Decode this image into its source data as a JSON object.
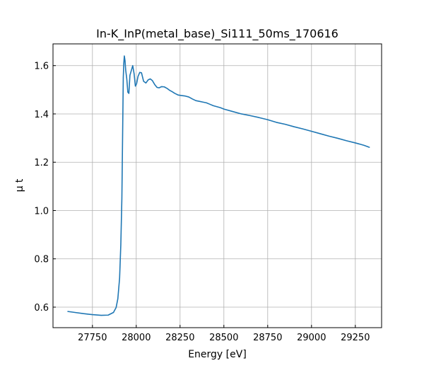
{
  "chart_data": {
    "type": "line",
    "title": "In-K_InP(metal_base)_Si111_50ms_170616",
    "xlabel": "Energy [eV]",
    "ylabel": "μ t",
    "xlim": [
      27525,
      29400
    ],
    "ylim": [
      0.515,
      1.69
    ],
    "xticks": [
      27750,
      28000,
      28250,
      28500,
      28750,
      29000,
      29250
    ],
    "yticks": [
      0.6,
      0.8,
      1.0,
      1.2,
      1.4,
      1.6
    ],
    "xtick_labels": [
      "27750",
      "28000",
      "28250",
      "28500",
      "28750",
      "29000",
      "29250"
    ],
    "ytick_labels": [
      "0.6",
      "0.8",
      "1.0",
      "1.2",
      "1.4",
      "1.6"
    ],
    "grid": true,
    "line_color": "#1f77b4",
    "series": [
      {
        "x": [
          27610,
          27650,
          27700,
          27750,
          27800,
          27840,
          27870,
          27885,
          27895,
          27905,
          27912,
          27918,
          27922,
          27926,
          27929,
          27932,
          27936,
          27940,
          27946,
          27952,
          27958,
          27964,
          27972,
          27980,
          27988,
          27995,
          28002,
          28010,
          28020,
          28030,
          28042,
          28055,
          28068,
          28080,
          28092,
          28105,
          28118,
          28130,
          28145,
          28160,
          28175,
          28190,
          28205,
          28220,
          28240,
          28260,
          28280,
          28300,
          28320,
          28340,
          28360,
          28380,
          28400,
          28420,
          28440,
          28460,
          28480,
          28500,
          28550,
          28600,
          28650,
          28700,
          28750,
          28800,
          28850,
          28900,
          28950,
          29000,
          29050,
          29100,
          29150,
          29200,
          29250,
          29300,
          29330
        ],
        "y": [
          0.582,
          0.578,
          0.573,
          0.569,
          0.566,
          0.567,
          0.578,
          0.598,
          0.635,
          0.72,
          0.86,
          1.05,
          1.3,
          1.55,
          1.61,
          1.64,
          1.62,
          1.58,
          1.545,
          1.49,
          1.485,
          1.56,
          1.58,
          1.6,
          1.565,
          1.515,
          1.525,
          1.555,
          1.572,
          1.57,
          1.535,
          1.528,
          1.541,
          1.545,
          1.538,
          1.522,
          1.51,
          1.508,
          1.513,
          1.512,
          1.506,
          1.498,
          1.492,
          1.485,
          1.478,
          1.476,
          1.474,
          1.47,
          1.462,
          1.455,
          1.452,
          1.449,
          1.446,
          1.44,
          1.434,
          1.43,
          1.426,
          1.42,
          1.41,
          1.4,
          1.393,
          1.385,
          1.376,
          1.365,
          1.357,
          1.347,
          1.338,
          1.328,
          1.318,
          1.308,
          1.299,
          1.289,
          1.28,
          1.27,
          1.262
        ]
      }
    ]
  }
}
